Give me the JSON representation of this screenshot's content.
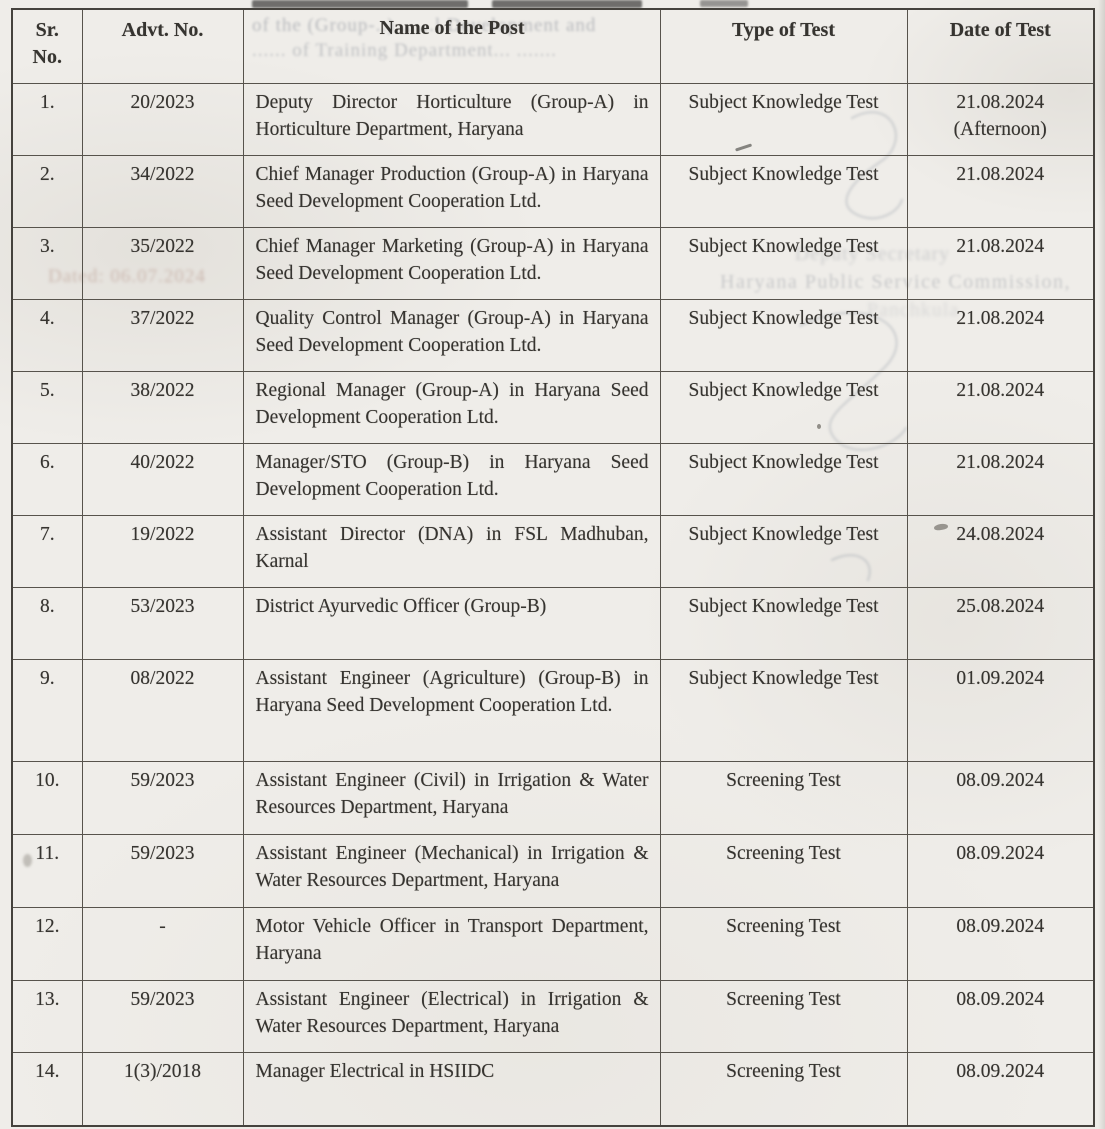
{
  "document_title": "Haryana Public Service Commission test schedule (scanned page)",
  "table": {
    "headers": {
      "sr": "Sr.\nNo.",
      "advt": "Advt. No.",
      "post": "Name of the Post",
      "test": "Type of Test",
      "date": "Date of Test"
    },
    "rows": [
      {
        "sr": "1.",
        "advt": "20/2023",
        "post": "Deputy Director Horticulture (Group-A) in Horticulture Department, Haryana",
        "test": "Subject Knowledge Test",
        "date": "21.08.2024\n(Afternoon)"
      },
      {
        "sr": "2.",
        "advt": "34/2022",
        "post": "Chief Manager Production (Group-A) in Haryana Seed Development Cooperation Ltd.",
        "test": "Subject Knowledge Test",
        "date": "21.08.2024"
      },
      {
        "sr": "3.",
        "advt": "35/2022",
        "post": "Chief Manager Marketing (Group-A) in Haryana Seed Development Cooperation Ltd.",
        "test": "Subject Knowledge Test",
        "date": "21.08.2024"
      },
      {
        "sr": "4.",
        "advt": "37/2022",
        "post": "Quality Control Manager (Group-A) in Haryana Seed Development Cooperation Ltd.",
        "test": "Subject Knowledge Test",
        "date": "21.08.2024"
      },
      {
        "sr": "5.",
        "advt": "38/2022",
        "post": "Regional Manager (Group-A) in Haryana Seed Development Cooperation Ltd.",
        "test": "Subject Knowledge Test",
        "date": "21.08.2024"
      },
      {
        "sr": "6.",
        "advt": "40/2022",
        "post": "Manager/STO (Group-B) in Haryana Seed Development Cooperation Ltd.",
        "test": "Subject Knowledge Test",
        "date": "21.08.2024"
      },
      {
        "sr": "7.",
        "advt": "19/2022",
        "post": "Assistant Director (DNA) in FSL Madhuban, Karnal",
        "test": "Subject Knowledge Test",
        "date": "24.08.2024"
      },
      {
        "sr": "8.",
        "advt": "53/2023",
        "post": "District Ayurvedic Officer (Group-B)",
        "test": "Subject Knowledge Test",
        "date": "25.08.2024"
      },
      {
        "sr": "9.",
        "advt": "08/2022",
        "post": "Assistant Engineer (Agriculture) (Group-B) in Haryana Seed Development Cooperation Ltd.",
        "test": "Subject Knowledge Test",
        "date": "01.09.2024"
      },
      {
        "sr": "10.",
        "advt": "59/2023",
        "post": "Assistant Engineer (Civil) in Irrigation & Water Resources Department, Haryana",
        "test": "Screening Test",
        "date": "08.09.2024"
      },
      {
        "sr": "11.",
        "advt": "59/2023",
        "post": "Assistant Engineer (Mechanical) in Irrigation & Water Resources Department, Haryana",
        "test": "Screening Test",
        "date": "08.09.2024"
      },
      {
        "sr": "12.",
        "advt": "-",
        "post": "Motor Vehicle Officer in Transport Department, Haryana",
        "test": "Screening Test",
        "date": "08.09.2024"
      },
      {
        "sr": "13.",
        "advt": "59/2023",
        "post": "Assistant Engineer (Electrical) in Irrigation & Water Resources Department, Haryana",
        "test": "Screening Test",
        "date": "08.09.2024"
      },
      {
        "sr": "14.",
        "advt": "1(3)/2018",
        "post": "Manager Electrical in HSIIDC",
        "test": "Screening Test",
        "date": "08.09.2024"
      }
    ]
  },
  "bleedthrough": {
    "top_text_1": "of the (Group-..) .. ...l Development and",
    "top_text_2": "...... of Training Department... .......",
    "dated_note": "Dated: 06.07.2024",
    "signatory_title": "Deputy Secretary",
    "signatory_org": "Haryana Public Service Commission,",
    "signatory_place": "Panchkula"
  },
  "colors": {
    "paper": "#efede9",
    "ink": "#363430",
    "table_border": "#45423d",
    "ghost_ink": "#7d838e",
    "dated_ghost_ink": "#a3786a"
  }
}
